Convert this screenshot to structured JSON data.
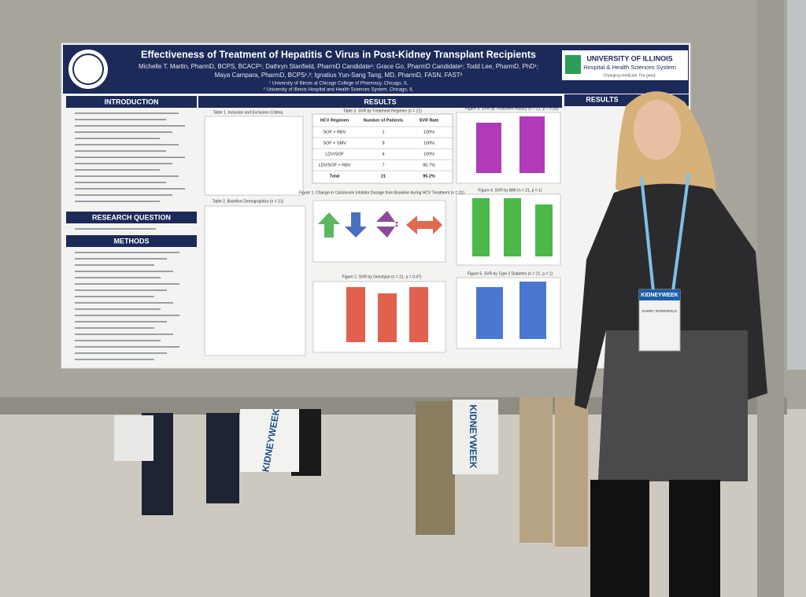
{
  "poster": {
    "title": "Effectiveness of Treatment of Hepatitis C Virus in Post-Kidney Transplant Recipients",
    "authors": [
      "Michelle T. Martin, PharmD, BCPS, BCACP¹; Dathryn Stanfield, PharmD Candidate¹; Grace Go, PharmD Candidate¹; Todd Lee, PharmD, PhD¹;",
      "Maya Campara, PharmD, BCPS¹,²; Ignatius Yun-Sang Tang, MD, PharmD, FASN, FAST²"
    ],
    "affiliations": [
      "¹ University of Illinois at Chicago College of Pharmacy, Chicago, IL",
      "² University of Illinois Hospital and Health Sciences System, Chicago, IL"
    ],
    "logo": {
      "name": "UNIVERSITY OF ILLINOIS",
      "subtitle": "Hospital & Health Sciences System",
      "tagline": "Changing medicine. For good."
    },
    "left_sections": [
      "INTRODUCTION",
      "RESEARCH QUESTION",
      "METHODS"
    ],
    "results_heading": "RESULTS",
    "table3": {
      "title": "Table 3. SVR by Treatment Regimen (n = 21)",
      "header": [
        "HCV Regimen",
        "Number of Patients",
        "SVR Rate"
      ],
      "rows": [
        [
          "SOF + RBV",
          "1",
          "100%"
        ],
        [
          "SOF + SMV",
          "9",
          "100%"
        ],
        [
          "LDV/SOF",
          "4",
          "100%"
        ],
        [
          "LDV/SOF + RBV",
          "7",
          "85.7%"
        ],
        [
          "Total",
          "21",
          "95.2%"
        ]
      ]
    },
    "figure_titles": [
      "Figure 3. SVR by Treatment History (n = 21, p = 0.33)",
      "Figure 1. Change in Calcineurin Inhibitor Dosage from Baseline during HCV Treatment (n = 21)",
      "Figure 4. SVR by BMI (n = 21, p = 1)",
      "Figure 2. SVR by Genotype (n = 21, p = 0.47)",
      "Figure 5. SVR by Type 2 Diabetes (n = 21, p = 1)"
    ],
    "table_titles": [
      "Table 1. Inclusion and Exclusion Criteria",
      "Table 2. Baseline Demographics (n = 21)"
    ]
  },
  "badge": {
    "event": "KIDNEYWEEK",
    "name": "DARBY ROSENFELD"
  },
  "bags": [
    "KIDNEYWEEK",
    "KIDNEYWEEK"
  ]
}
